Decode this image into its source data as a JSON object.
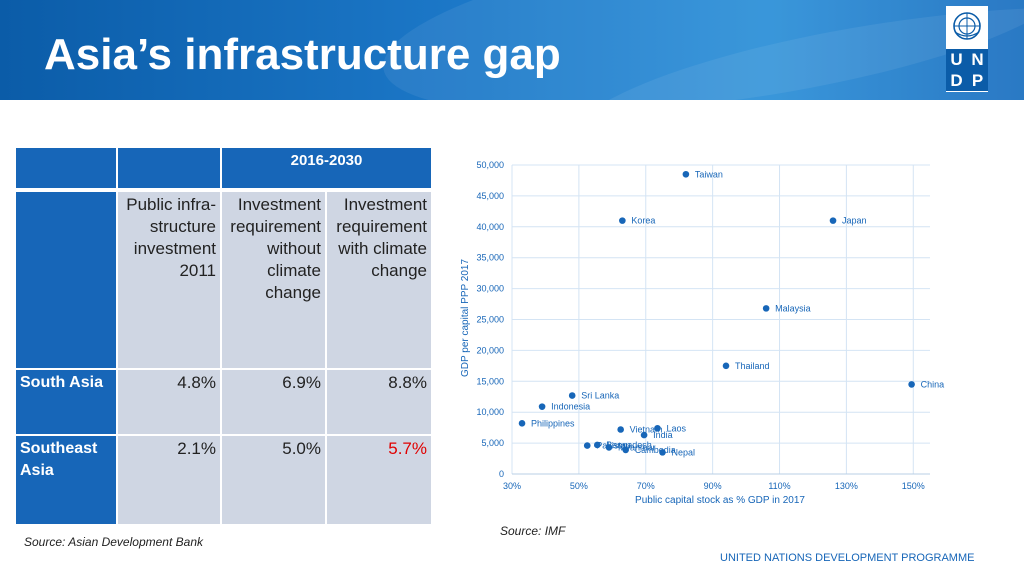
{
  "slide": {
    "title": "Asia’s infrastructure gap",
    "footer": "UNITED NATIONS DEVELOPMENT PROGRAMME",
    "logo_letters": [
      "U",
      "N",
      "D",
      "P"
    ],
    "colors": {
      "banner": "#1766b8",
      "table_header": "#1766b8",
      "table_body": "#cfd6e3",
      "highlight": "#e00000",
      "point": "#1766b8"
    }
  },
  "table": {
    "period": "2016-2030",
    "columns": [
      "Public infra-structure investment 2011",
      "Investment requirement without climate change",
      "Investment requirement with climate change"
    ],
    "column_lines": [
      [
        "Public infra-",
        "structure",
        "investment",
        "2011"
      ],
      [
        "Investment",
        "requirement",
        "without",
        "climate",
        "change"
      ],
      [
        "Investment",
        "requirement",
        "with climate",
        "change"
      ]
    ],
    "rows": [
      {
        "region": "South Asia",
        "region_lines": [
          "South Asia"
        ],
        "values": [
          "4.8%",
          "6.9%",
          "8.8%"
        ]
      },
      {
        "region": "Southeast Asia",
        "region_lines": [
          "Southeast",
          "Asia"
        ],
        "values": [
          "2.1%",
          "5.0%",
          "5.7%"
        ]
      }
    ],
    "source": "Source: Asian Development Bank"
  },
  "chart_data": {
    "type": "scatter",
    "xlabel": "Public capital stock as % GDP in 2017",
    "ylabel": "GDP per capital PPP 2017",
    "xlim": [
      30,
      155
    ],
    "ylim": [
      0,
      50000
    ],
    "x_ticks": [
      30,
      50,
      70,
      90,
      110,
      130,
      150
    ],
    "x_tick_labels": [
      "30%",
      "50%",
      "70%",
      "90%",
      "110%",
      "130%",
      "150%"
    ],
    "y_ticks": [
      0,
      5000,
      10000,
      15000,
      20000,
      25000,
      30000,
      35000,
      40000,
      45000,
      50000
    ],
    "y_tick_labels": [
      "0",
      "5,000",
      "10,000",
      "15,000",
      "20,000",
      "25,000",
      "30,000",
      "35,000",
      "40,000",
      "45,000",
      "50,000"
    ],
    "grid": true,
    "points": [
      {
        "label": "Taiwan",
        "x": 82,
        "y": 48500
      },
      {
        "label": "Korea",
        "x": 63,
        "y": 41000
      },
      {
        "label": "Japan",
        "x": 126,
        "y": 41000
      },
      {
        "label": "Malaysia",
        "x": 106,
        "y": 26800
      },
      {
        "label": "Thailand",
        "x": 94,
        "y": 17500
      },
      {
        "label": "China",
        "x": 149.5,
        "y": 14500
      },
      {
        "label": "Sri Lanka",
        "x": 48,
        "y": 12700
      },
      {
        "label": "Indonesia",
        "x": 39,
        "y": 10900
      },
      {
        "label": "Philippines",
        "x": 33,
        "y": 8200
      },
      {
        "label": "Vietnam",
        "x": 62.5,
        "y": 7200
      },
      {
        "label": "Laos",
        "x": 73.5,
        "y": 7400
      },
      {
        "label": "India",
        "x": 69.5,
        "y": 6300
      },
      {
        "label": "Bangadesh",
        "x": 55.5,
        "y": 4700
      },
      {
        "label": "Pakistan",
        "x": 52.5,
        "y": 4600
      },
      {
        "label": "Myanmar",
        "x": 59,
        "y": 4300
      },
      {
        "label": "Cambodia",
        "x": 64,
        "y": 3900
      },
      {
        "label": "Nepal",
        "x": 75,
        "y": 3500
      }
    ],
    "source": "Source: IMF"
  }
}
